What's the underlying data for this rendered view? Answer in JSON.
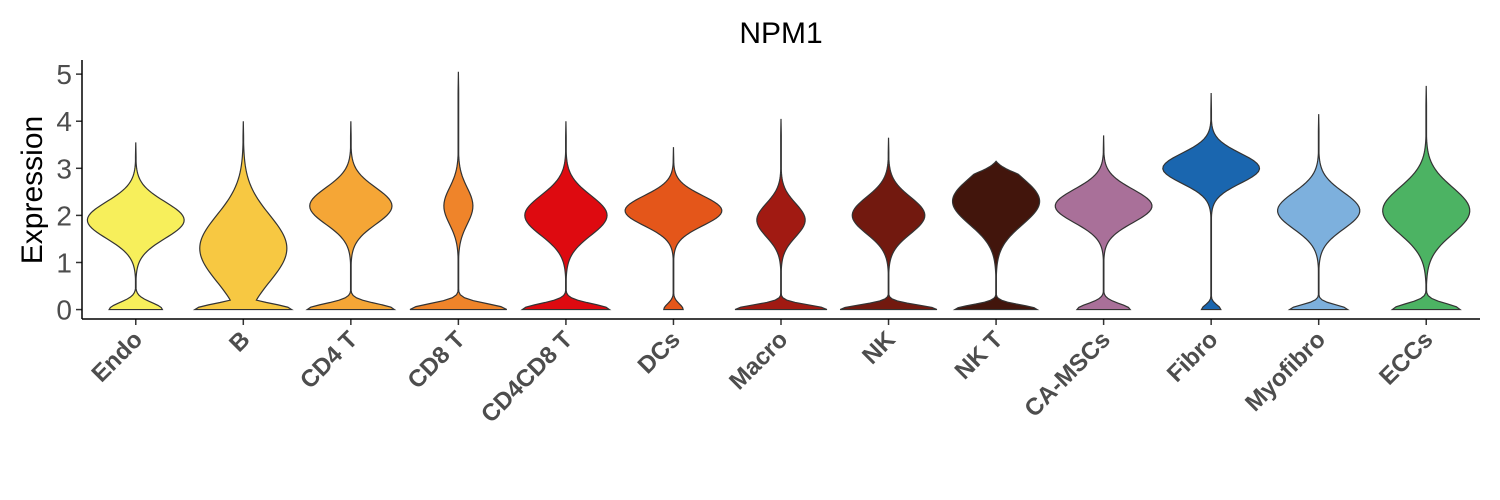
{
  "chart_data": {
    "type": "violin",
    "title": "NPM1",
    "ylabel": "Expression",
    "xlabel": "",
    "ylim": [
      -0.2,
      5.3
    ],
    "yticks": [
      "0",
      "1",
      "2",
      "3",
      "4",
      "5"
    ],
    "grid": false,
    "legend": "none",
    "categories": [
      "Endo",
      "B",
      "CD4 T",
      "CD8 T",
      "CD4CD8 T",
      "DCs",
      "Macro",
      "NK",
      "NK T",
      "CA-MSCs",
      "Fibro",
      "Myofibro",
      "ECCs"
    ],
    "colors": [
      "#F7EF5B",
      "#F7C842",
      "#F5A636",
      "#EF842A",
      "#DE0A10",
      "#E4561A",
      "#A11A12",
      "#72190F",
      "#42150C",
      "#A97099",
      "#1A66AF",
      "#7DB0DD",
      "#4CB363"
    ],
    "violins": [
      {
        "max": 3.55,
        "zero_peak": 0.3,
        "zero_width": 0.55,
        "upper_center": 1.9,
        "upper_sd": 0.55,
        "upper_width": 1.0
      },
      {
        "max": 4.0,
        "zero_peak": 0.25,
        "zero_width": 1.0,
        "upper_center": 1.3,
        "upper_sd": 1.0,
        "upper_width": 0.9
      },
      {
        "max": 4.0,
        "zero_peak": 0.25,
        "zero_width": 0.9,
        "upper_center": 2.2,
        "upper_sd": 0.55,
        "upper_width": 0.85
      },
      {
        "max": 5.05,
        "zero_peak": 0.25,
        "zero_width": 1.0,
        "upper_center": 2.2,
        "upper_sd": 0.55,
        "upper_width": 0.3
      },
      {
        "max": 4.0,
        "zero_peak": 0.25,
        "zero_width": 0.9,
        "upper_center": 2.0,
        "upper_sd": 0.6,
        "upper_width": 0.85
      },
      {
        "max": 3.45,
        "zero_peak": 0.25,
        "zero_width": 0.2,
        "upper_center": 2.1,
        "upper_sd": 0.45,
        "upper_width": 1.0
      },
      {
        "max": 4.05,
        "zero_peak": 0.2,
        "zero_width": 0.95,
        "upper_center": 1.9,
        "upper_sd": 0.5,
        "upper_width": 0.5
      },
      {
        "max": 3.65,
        "zero_peak": 0.2,
        "zero_width": 1.0,
        "upper_center": 2.0,
        "upper_sd": 0.55,
        "upper_width": 0.75
      },
      {
        "max": 3.15,
        "zero_peak": 0.2,
        "zero_width": 0.85,
        "upper_center": 2.3,
        "upper_sd": 0.7,
        "upper_width": 0.9
      },
      {
        "max": 3.7,
        "zero_peak": 0.25,
        "zero_width": 0.55,
        "upper_center": 2.2,
        "upper_sd": 0.5,
        "upper_width": 1.0
      },
      {
        "max": 4.6,
        "zero_peak": 0.2,
        "zero_width": 0.2,
        "upper_center": 3.0,
        "upper_sd": 0.45,
        "upper_width": 1.0
      },
      {
        "max": 4.15,
        "zero_peak": 0.2,
        "zero_width": 0.6,
        "upper_center": 2.1,
        "upper_sd": 0.55,
        "upper_width": 0.85
      },
      {
        "max": 4.75,
        "zero_peak": 0.25,
        "zero_width": 0.7,
        "upper_center": 2.1,
        "upper_sd": 0.7,
        "upper_width": 0.9
      }
    ]
  }
}
